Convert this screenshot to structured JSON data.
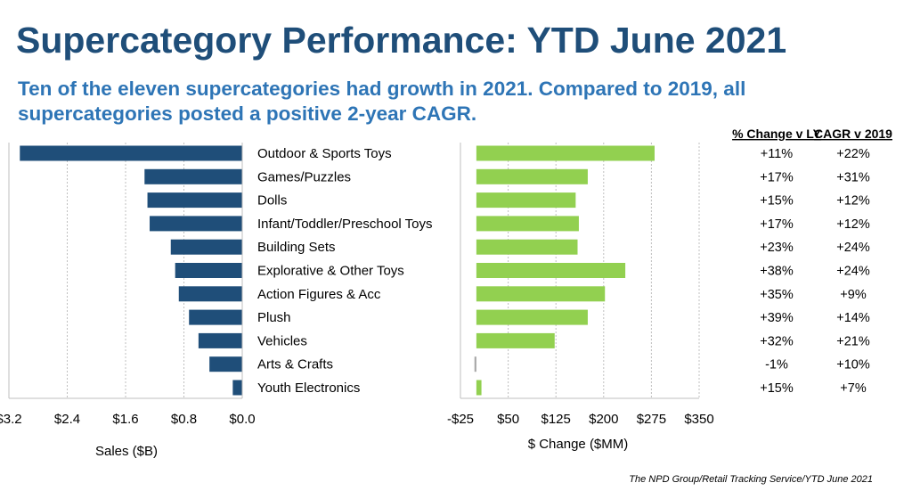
{
  "header": {
    "title": "Supercategory Performance: YTD June 2021",
    "subtitle": "Ten of the eleven supercategories had growth in 2021. Compared to 2019, all supercategories posted a positive 2-year CAGR."
  },
  "source": "The NPD Group/Retail Tracking Service/YTD June 2021",
  "colors": {
    "title": "#1f4e79",
    "subtitle": "#2e75b6",
    "sales_bar": "#1f4e79",
    "change_bar": "#92d050",
    "negative_bar": "#a6a6a6"
  },
  "chart_data": [
    {
      "type": "bar",
      "orientation": "horizontal",
      "title": "",
      "xlabel": "Sales ($B)",
      "ylabel": "",
      "xlim": [
        0,
        3.2
      ],
      "reversed_axis": true,
      "tick_labels": [
        "$3.2",
        "$2.4",
        "$1.6",
        "$0.8",
        "$0.0"
      ],
      "categories": [
        "Outdoor & Sports Toys",
        "Games/Puzzles",
        "Dolls",
        "Infant/Toddler/Preschool Toys",
        "Building Sets",
        "Explorative & Other Toys",
        "Action Figures & Acc",
        "Plush",
        "Vehicles",
        "Arts & Crafts",
        "Youth Electronics"
      ],
      "values": [
        3.05,
        1.34,
        1.3,
        1.27,
        0.98,
        0.92,
        0.87,
        0.73,
        0.6,
        0.45,
        0.13
      ]
    },
    {
      "type": "bar",
      "orientation": "horizontal",
      "title": "",
      "xlabel": "$ Change ($MM)",
      "ylabel": "",
      "xlim": [
        -25,
        350
      ],
      "tick_labels": [
        "-$25",
        "$50",
        "$125",
        "$200",
        "$275",
        "$350"
      ],
      "categories": [
        "Outdoor & Sports Toys",
        "Games/Puzzles",
        "Dolls",
        "Infant/Toddler/Preschool Toys",
        "Building Sets",
        "Explorative & Other Toys",
        "Action Figures & Acc",
        "Plush",
        "Vehicles",
        "Arts & Crafts",
        "Youth Electronics"
      ],
      "values": [
        280,
        175,
        156,
        161,
        159,
        234,
        202,
        175,
        123,
        -3,
        8
      ]
    },
    {
      "type": "table",
      "columns": [
        "% Change v LY",
        "CAGR v 2019"
      ],
      "rows": [
        [
          "+11%",
          "+22%"
        ],
        [
          "+17%",
          "+31%"
        ],
        [
          "+15%",
          "+12%"
        ],
        [
          "+17%",
          "+12%"
        ],
        [
          "+23%",
          "+24%"
        ],
        [
          "+38%",
          "+24%"
        ],
        [
          "+35%",
          "+9%"
        ],
        [
          "+39%",
          "+14%"
        ],
        [
          "+32%",
          "+21%"
        ],
        [
          "-1%",
          "+10%"
        ],
        [
          "+15%",
          "+7%"
        ]
      ]
    }
  ]
}
